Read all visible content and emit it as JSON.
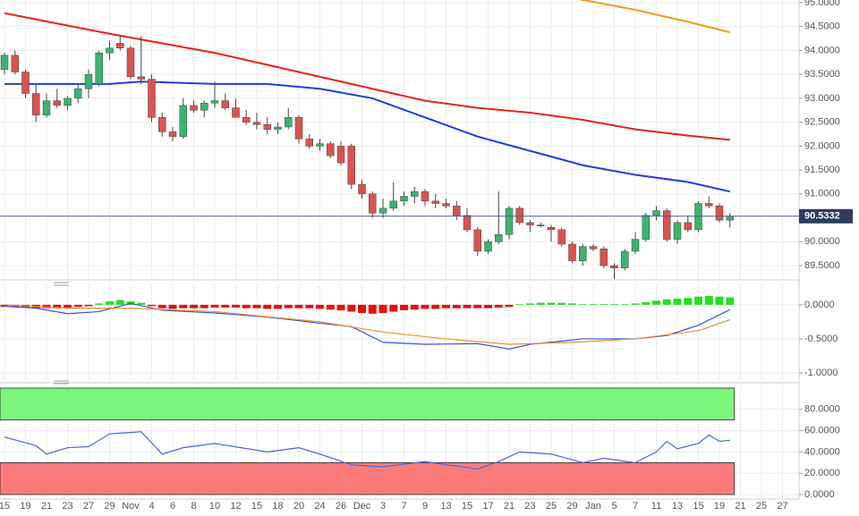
{
  "chart_data": [
    {
      "type": "candlestick",
      "categories": [
        "15",
        null,
        "19",
        null,
        "21",
        null,
        "23",
        null,
        "27",
        null,
        "29",
        null,
        "Nov",
        null,
        "4",
        null,
        "6",
        null,
        "8",
        null,
        "10",
        null,
        "12",
        null,
        "15",
        null,
        "18",
        null,
        "20",
        null,
        "24",
        null,
        "26",
        null,
        "Dec",
        null,
        "3",
        null,
        "7",
        null,
        "9",
        null,
        "13",
        null,
        "15",
        null,
        "17",
        null,
        "21",
        null,
        "23",
        null,
        "25",
        null,
        "29",
        null,
        "Jan",
        null,
        "5",
        null,
        "7",
        null,
        "11",
        null,
        "13",
        null,
        "15",
        null,
        "19",
        null,
        "21",
        null,
        "25",
        null,
        "27",
        null
      ],
      "open": [
        93.6,
        93.9,
        93.55,
        93.1,
        92.65,
        92.95,
        92.85,
        93.0,
        93.2,
        93.3,
        93.95,
        94.15,
        94.05,
        93.45,
        93.4,
        92.6,
        92.3,
        92.2,
        92.85,
        92.75,
        92.9,
        92.95,
        92.8,
        92.6,
        92.5,
        92.45,
        92.35,
        92.4,
        92.6,
        92.15,
        92.0,
        92.05,
        92.0,
        92.0,
        91.2,
        91.0,
        90.6,
        90.7,
        90.85,
        90.95,
        91.05,
        90.85,
        90.8,
        90.75,
        90.55,
        90.25,
        89.8,
        90.0,
        90.15,
        90.7,
        90.4,
        90.35,
        90.3,
        90.25,
        89.95,
        89.6,
        89.9,
        89.85,
        89.5,
        89.45,
        89.8,
        90.05,
        90.55,
        90.65,
        90.05,
        90.4,
        90.25,
        90.8,
        90.75,
        90.45,
        null,
        null,
        null,
        null,
        null,
        null
      ],
      "high": [
        93.95,
        94.0,
        93.6,
        93.3,
        93.1,
        93.2,
        93.05,
        93.3,
        93.6,
        94.0,
        94.2,
        94.3,
        94.1,
        94.3,
        93.5,
        92.7,
        92.4,
        93.0,
        92.95,
        92.95,
        93.35,
        93.1,
        93.0,
        92.75,
        92.7,
        92.6,
        92.5,
        92.8,
        92.65,
        92.25,
        92.15,
        92.1,
        92.1,
        92.05,
        91.3,
        91.05,
        90.9,
        91.25,
        91.05,
        91.15,
        91.1,
        91.0,
        90.9,
        90.85,
        90.7,
        90.3,
        90.05,
        91.05,
        90.75,
        90.75,
        90.45,
        90.4,
        90.35,
        90.3,
        90.0,
        89.95,
        89.95,
        89.9,
        89.55,
        89.85,
        90.2,
        90.6,
        90.75,
        90.7,
        90.45,
        90.55,
        90.85,
        90.95,
        90.8,
        90.6,
        null,
        null,
        null,
        null,
        null,
        null
      ],
      "low": [
        93.5,
        93.5,
        93.0,
        92.5,
        92.6,
        92.8,
        92.75,
        92.9,
        93.0,
        93.25,
        93.8,
        94.0,
        93.4,
        93.3,
        92.5,
        92.2,
        92.1,
        92.15,
        92.7,
        92.6,
        92.8,
        92.75,
        92.6,
        92.45,
        92.35,
        92.25,
        92.25,
        92.35,
        92.05,
        91.95,
        91.9,
        91.75,
        91.6,
        91.1,
        90.9,
        90.5,
        90.5,
        90.65,
        90.75,
        90.8,
        90.75,
        90.7,
        90.7,
        90.45,
        90.2,
        89.7,
        89.75,
        89.95,
        90.05,
        90.35,
        90.2,
        90.3,
        90.0,
        89.9,
        89.55,
        89.5,
        89.8,
        89.45,
        89.2,
        89.4,
        89.75,
        90.0,
        90.45,
        90.0,
        89.95,
        90.2,
        90.2,
        90.7,
        90.4,
        90.3,
        null,
        null,
        null,
        null,
        null,
        null
      ],
      "close": [
        93.9,
        93.55,
        93.1,
        92.65,
        92.95,
        92.85,
        93.0,
        93.2,
        93.5,
        93.95,
        94.05,
        94.05,
        93.45,
        93.4,
        92.6,
        92.3,
        92.2,
        92.85,
        92.75,
        92.9,
        92.95,
        92.8,
        92.6,
        92.5,
        92.45,
        92.35,
        92.4,
        92.6,
        92.15,
        92.0,
        92.05,
        91.8,
        91.65,
        91.2,
        91.0,
        90.6,
        90.7,
        90.85,
        90.95,
        91.05,
        90.85,
        90.8,
        90.75,
        90.55,
        90.25,
        89.8,
        90.0,
        90.15,
        90.7,
        90.4,
        90.35,
        90.33,
        90.25,
        89.95,
        89.6,
        89.9,
        89.85,
        89.5,
        89.45,
        89.8,
        90.05,
        90.55,
        90.65,
        90.05,
        90.4,
        90.25,
        90.8,
        90.75,
        90.45,
        90.53,
        null,
        null,
        null,
        null,
        null,
        null
      ],
      "up_color": "#3cb371",
      "down_color": "#d9534f",
      "lines": [
        {
          "color": "#f29b1d",
          "x": [
            54,
            60,
            65,
            69
          ],
          "values": [
            95.1,
            94.85,
            94.6,
            94.38
          ]
        },
        {
          "color": "#e8231f",
          "x": [
            0,
            10,
            20,
            30,
            35,
            40,
            45,
            50,
            55,
            60,
            65,
            69
          ],
          "values": [
            94.78,
            94.35,
            93.95,
            93.45,
            93.2,
            92.95,
            92.8,
            92.7,
            92.55,
            92.35,
            92.22,
            92.13
          ]
        },
        {
          "color": "#1f3ee0",
          "x": [
            0,
            10,
            13,
            20,
            25,
            30,
            35,
            40,
            45,
            50,
            55,
            60,
            65,
            69
          ],
          "values": [
            93.3,
            93.3,
            93.35,
            93.3,
            93.3,
            93.2,
            93.0,
            92.6,
            92.2,
            91.9,
            91.6,
            91.4,
            91.25,
            91.05
          ]
        }
      ],
      "last_price": 90.5332,
      "ylim": [
        89.22,
        95.056
      ],
      "yticks": [
        {
          "value": 95,
          "label": "95.0000"
        },
        {
          "value": 94.5,
          "label": "94.5000"
        },
        {
          "value": 94,
          "label": "94.0000"
        },
        {
          "value": 93.5,
          "label": "93.5000"
        },
        {
          "value": 93,
          "label": "93.0000"
        },
        {
          "value": 92.5,
          "label": "92.5000"
        },
        {
          "value": 92,
          "label": "92.0000"
        },
        {
          "value": 91.5,
          "label": "91.5000"
        },
        {
          "value": 91,
          "label": "91.0000"
        },
        {
          "value": 90,
          "label": "90.0000"
        },
        {
          "value": 89.5,
          "label": "89.5000"
        }
      ]
    },
    {
      "type": "macd",
      "histogram": {
        "up_color": "#22e022",
        "down_color": "#e81010",
        "values": [
          -0.03,
          -0.03,
          -0.04,
          -0.05,
          -0.05,
          -0.05,
          -0.04,
          -0.03,
          -0.02,
          0.02,
          0.05,
          0.07,
          0.05,
          0.03,
          -0.02,
          -0.05,
          -0.06,
          -0.05,
          -0.05,
          -0.05,
          -0.04,
          -0.04,
          -0.04,
          -0.05,
          -0.05,
          -0.06,
          -0.06,
          -0.05,
          -0.05,
          -0.05,
          -0.06,
          -0.07,
          -0.08,
          -0.1,
          -0.12,
          -0.13,
          -0.12,
          -0.1,
          -0.08,
          -0.07,
          -0.06,
          -0.06,
          -0.05,
          -0.05,
          -0.05,
          -0.05,
          -0.05,
          -0.04,
          -0.03,
          0.01,
          0.02,
          0.03,
          0.03,
          0.03,
          0.02,
          0.01,
          0.01,
          0.01,
          0.01,
          0.01,
          0.02,
          0.04,
          0.06,
          0.08,
          0.09,
          0.1,
          0.12,
          0.13,
          0.12,
          0.11,
          null,
          null,
          null,
          null,
          null,
          null
        ]
      },
      "lines": [
        {
          "color": "#3355dd",
          "x": [
            0,
            3,
            6,
            9,
            12,
            15,
            20,
            25,
            30,
            33,
            36,
            40,
            45,
            48,
            50,
            55,
            60,
            63,
            66,
            69
          ],
          "values": [
            -0.02,
            -0.05,
            -0.13,
            -0.1,
            0.02,
            -0.08,
            -0.12,
            -0.18,
            -0.27,
            -0.32,
            -0.55,
            -0.58,
            -0.57,
            -0.65,
            -0.58,
            -0.5,
            -0.5,
            -0.45,
            -0.3,
            -0.07
          ]
        },
        {
          "color": "#f28a30",
          "x": [
            0,
            6,
            12,
            20,
            30,
            36,
            42,
            48,
            54,
            60,
            66,
            69
          ],
          "values": [
            0.0,
            -0.05,
            -0.05,
            -0.1,
            -0.25,
            -0.4,
            -0.5,
            -0.58,
            -0.55,
            -0.5,
            -0.38,
            -0.22
          ]
        }
      ],
      "ylim": [
        -1.105,
        0.3
      ],
      "yticks": [
        {
          "value": 0,
          "label": "0.0000"
        },
        {
          "value": -0.5,
          "label": "-0.5000"
        },
        {
          "value": -1,
          "label": "-1.0000"
        }
      ]
    },
    {
      "type": "rsi",
      "bands": [
        {
          "from": 70,
          "to": 100,
          "color": "#7cf57c"
        },
        {
          "from": 0,
          "to": 30,
          "color": "#fb7b7b"
        }
      ],
      "lines": [
        {
          "color": "#4466ee",
          "x": [
            0,
            3,
            4,
            6,
            8,
            10,
            13,
            15,
            17,
            20,
            25,
            28,
            30,
            33,
            36,
            40,
            42,
            45,
            47,
            49,
            52,
            55,
            57,
            60,
            62,
            63,
            64,
            66,
            67,
            68,
            69
          ],
          "values": [
            54,
            46,
            38,
            44,
            45,
            57,
            59,
            38,
            44,
            48,
            40,
            44,
            38,
            28,
            26,
            31,
            28,
            24,
            31,
            40,
            38,
            30,
            34,
            30,
            40,
            50,
            43,
            48,
            56,
            50,
            51
          ]
        }
      ],
      "ylim": [
        -4.2,
        102.5
      ],
      "yticks": [
        {
          "value": 80,
          "label": "80.0000"
        },
        {
          "value": 60,
          "label": "60.0000"
        },
        {
          "value": 40,
          "label": "40.0000"
        },
        {
          "value": 20,
          "label": "20.0000"
        },
        {
          "value": 0,
          "label": "0.0000"
        }
      ]
    }
  ]
}
